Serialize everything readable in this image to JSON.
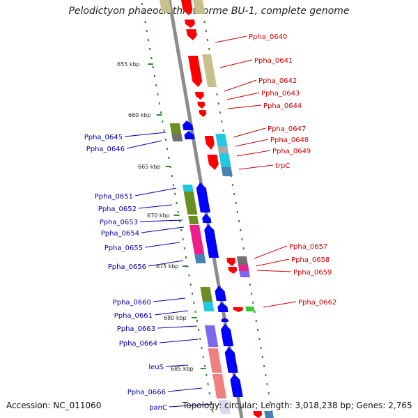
{
  "title": "Pelodictyon phaeoclathratiforme BU-1, complete genome",
  "footer": {
    "accession": "Accession: NC_011060",
    "summary": "Topology: circular; Length: 3,018,238 bp; Genes: 2,765"
  },
  "colors": {
    "backbone": "#8c8c8c",
    "ticks": "#2e8b2e",
    "forward_label": "#cc0000",
    "reverse_label": "#0000aa",
    "forward_gene": "#ff0000",
    "reverse_gene": "#0000ff",
    "cog_tan": "#c8c08a",
    "cog_olive": "#6b8e23",
    "cog_cyan": "#22c8e0",
    "cog_steel": "#4682b4",
    "cog_pink": "#ee1f8a",
    "cog_purple": "#7b68ee",
    "cog_salmon": "#f08080",
    "cog_gray": "#707070",
    "cog_green": "#33cc33"
  },
  "scale_labels": [
    "655 kbp",
    "660 kbp",
    "665 kbp",
    "670 kbp",
    "675 kbp",
    "680 kbp",
    "685 kbp"
  ],
  "forward_genes": [
    "Ppha_0640",
    "Ppha_0641",
    "Ppha_0642",
    "Ppha_0643",
    "Ppha_0644",
    "Ppha_0647",
    "Ppha_0648",
    "Ppha_0649",
    "trpC",
    "Ppha_0657",
    "Ppha_0658",
    "Ppha_0659",
    "Ppha_0662"
  ],
  "reverse_genes": [
    "Ppha_0645",
    "Ppha_0646",
    "Ppha_0651",
    "Ppha_0652",
    "Ppha_0653",
    "Ppha_0654",
    "Ppha_0655",
    "Ppha_0656",
    "Ppha_0660",
    "Ppha_0661",
    "Ppha_0663",
    "Ppha_0664",
    "leuS",
    "Ppha_0666",
    "panC"
  ]
}
